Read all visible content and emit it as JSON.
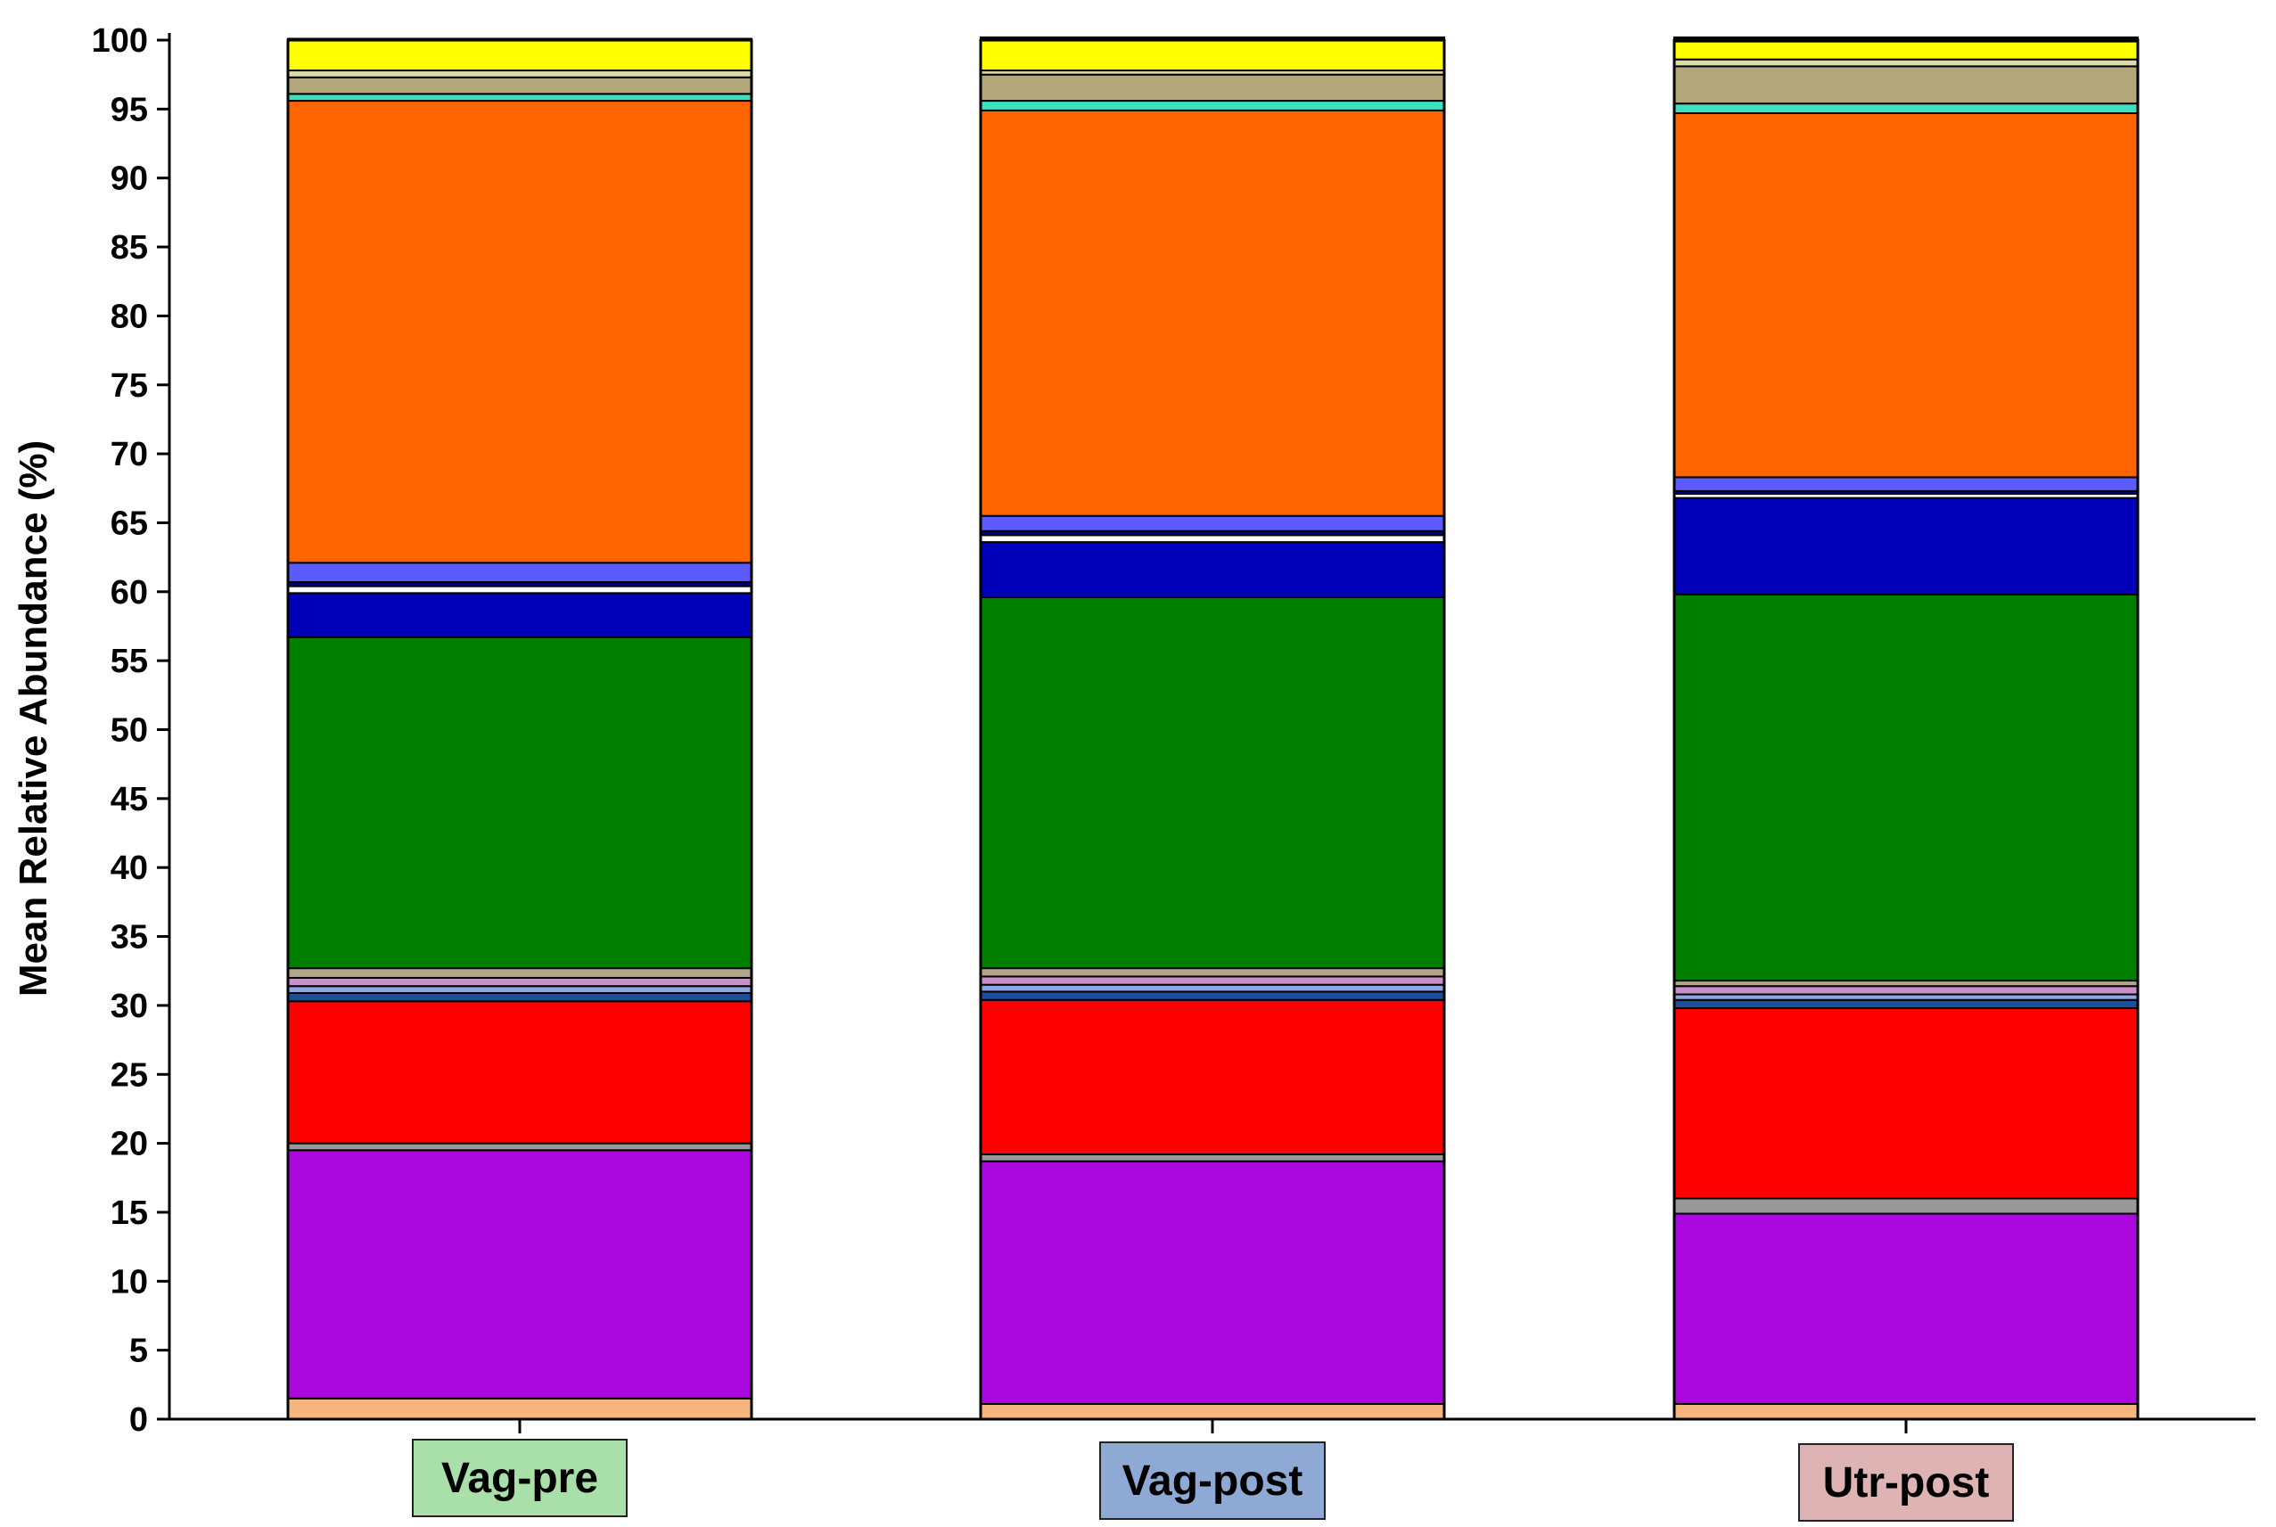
{
  "chart_data": {
    "type": "bar",
    "stacked": true,
    "title": "",
    "xlabel": "",
    "ylabel": "Mean Relative Abundance (%)",
    "ylim": [
      0,
      100
    ],
    "yticks": [
      "0",
      "5",
      "10",
      "15",
      "20",
      "25",
      "30",
      "35",
      "40",
      "45",
      "50",
      "55",
      "60",
      "65",
      "70",
      "75",
      "80",
      "85",
      "90",
      "95",
      "100"
    ],
    "grid": false,
    "legend": "none",
    "categories": [
      "Vag-pre",
      "Vag-post",
      "Utr-post"
    ],
    "category_label_colors": [
      "#a9dfa9",
      "#8eaad4",
      "#ddb3b3"
    ],
    "series": [
      {
        "color": "#f7b57e",
        "values": [
          1.5,
          1.1,
          1.1
        ]
      },
      {
        "color": "#ab08e0",
        "values": [
          18.0,
          17.6,
          13.8
        ]
      },
      {
        "color": "#999999",
        "values": [
          0.5,
          0.5,
          1.1
        ]
      },
      {
        "color": "#fe0000",
        "values": [
          10.3,
          11.2,
          13.8
        ]
      },
      {
        "color": "#1a4ea0",
        "values": [
          0.6,
          0.6,
          0.6
        ]
      },
      {
        "color": "#8da8e0",
        "values": [
          0.5,
          0.5,
          0.4
        ]
      },
      {
        "color": "#c990c9",
        "values": [
          0.6,
          0.6,
          0.6
        ]
      },
      {
        "color": "#b3a58a",
        "values": [
          0.7,
          0.6,
          0.4
        ]
      },
      {
        "color": "#007e00",
        "values": [
          24.0,
          26.9,
          28.0
        ]
      },
      {
        "color": "#0000b8",
        "values": [
          3.2,
          4.0,
          7.0
        ]
      },
      {
        "color": "#ffffff",
        "values": [
          0.5,
          0.5,
          0.3
        ]
      },
      {
        "color": "#000080",
        "values": [
          0.3,
          0.3,
          0.2
        ]
      },
      {
        "color": "#5b5bff",
        "values": [
          1.4,
          1.1,
          1.0
        ]
      },
      {
        "color": "#fe6500",
        "values": [
          33.5,
          29.4,
          26.4
        ]
      },
      {
        "color": "#3fe0c0",
        "values": [
          0.5,
          0.7,
          0.7
        ]
      },
      {
        "color": "#b3a67a",
        "values": [
          1.2,
          1.9,
          2.7
        ]
      },
      {
        "color": "#dcdcaa",
        "values": [
          0.5,
          0.3,
          0.5
        ]
      },
      {
        "color": "#ffff00",
        "values": [
          2.3,
          2.2,
          1.3
        ]
      },
      {
        "color": "#000000",
        "values": [
          0.0,
          0.2,
          0.3
        ]
      }
    ]
  }
}
